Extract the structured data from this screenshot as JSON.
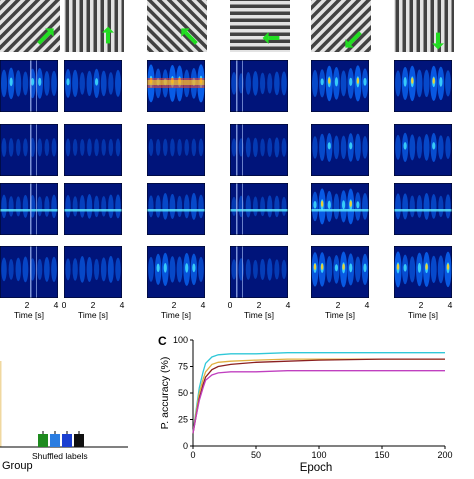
{
  "figure": {
    "panel_c_label": "C",
    "grating_orientations_deg": [
      45,
      0,
      135,
      90,
      45,
      0
    ],
    "arrow_directions": [
      "up-right",
      "up",
      "up-left",
      "left",
      "down-left",
      "down"
    ],
    "heatmap_rows": 4,
    "heatmap_cols": 6,
    "time_axis": {
      "label": "Time [s]",
      "tick_labels": [
        [
          "2",
          "4"
        ],
        [
          "0",
          "2",
          "4"
        ],
        [
          "2",
          "4"
        ],
        [
          "0",
          "2",
          "4"
        ],
        [
          "2",
          "4"
        ],
        [
          "2",
          "4"
        ]
      ]
    },
    "panel_b": {
      "xlabel_bar_group": "Shuffled labels",
      "xlabel": "Group",
      "bar_colors": [
        "#1e8a1e",
        "#2a7de1",
        "#1b3fd0",
        "#111111"
      ]
    }
  },
  "chart_data": {
    "type": "line",
    "xlabel": "Epoch",
    "ylabel": "P. accuracy (%)",
    "xlim": [
      0,
      200
    ],
    "ylim": [
      0,
      100
    ],
    "xticks": [
      "0",
      "50",
      "100",
      "150",
      "200"
    ],
    "yticks": [
      "0",
      "25",
      "50",
      "75",
      "100"
    ],
    "grid": false,
    "series": [
      {
        "color": "#30c8d8",
        "x": [
          0,
          2,
          5,
          8,
          10,
          15,
          20,
          30,
          50,
          75,
          100,
          150,
          200
        ],
        "y": [
          12,
          30,
          55,
          70,
          78,
          84,
          86,
          87,
          87,
          88,
          88,
          88,
          88
        ]
      },
      {
        "color": "#e0b040",
        "x": [
          0,
          2,
          5,
          8,
          10,
          15,
          20,
          30,
          50,
          75,
          100,
          150,
          200
        ],
        "y": [
          12,
          28,
          50,
          63,
          70,
          77,
          79,
          80,
          81,
          82,
          82,
          82,
          82
        ]
      },
      {
        "color": "#8b2020",
        "x": [
          0,
          2,
          5,
          8,
          10,
          15,
          20,
          30,
          50,
          75,
          100,
          150,
          200
        ],
        "y": [
          12,
          25,
          45,
          58,
          65,
          72,
          75,
          77,
          79,
          80,
          81,
          82,
          82
        ]
      },
      {
        "color": "#c040c0",
        "x": [
          0,
          2,
          5,
          8,
          10,
          15,
          20,
          30,
          50,
          75,
          100,
          150,
          200
        ],
        "y": [
          12,
          25,
          43,
          55,
          62,
          67,
          69,
          70,
          70,
          71,
          71,
          71,
          71
        ]
      }
    ]
  }
}
